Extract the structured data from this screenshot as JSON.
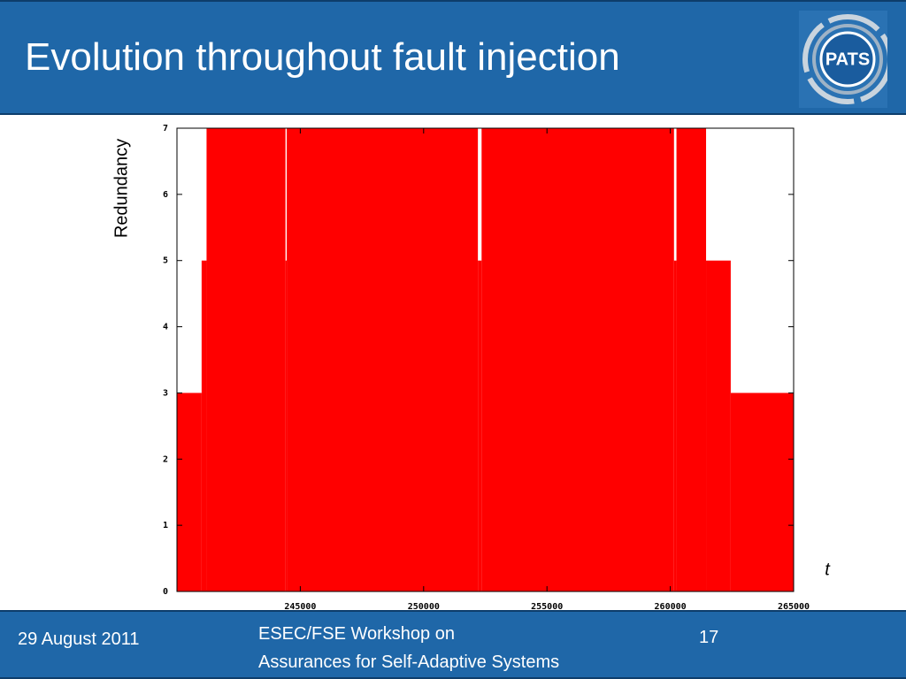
{
  "header": {
    "title": "Evolution throughout fault injection",
    "logo": "PATS"
  },
  "chart_data": {
    "type": "step-area",
    "y_label": "Redundancy",
    "x_label": "t",
    "color": "#ff0000",
    "x": [
      240000,
      241000,
      241200,
      244400,
      244450,
      252200,
      252350,
      260150,
      260250,
      261450,
      262450
    ],
    "values": [
      3,
      5,
      7,
      5,
      7,
      5,
      7,
      5,
      7,
      5,
      3
    ],
    "xlim": [
      240000,
      265000
    ],
    "ylim": [
      0,
      7
    ],
    "xticks": [
      245000,
      250000,
      255000,
      260000,
      265000
    ],
    "yticks": [
      0,
      1,
      2,
      3,
      4,
      5,
      6,
      7
    ]
  },
  "footer": {
    "date": "29 August 2011",
    "event_line1": "ESEC/FSE Workshop on",
    "event_line2": "Assurances for Self-Adaptive Systems",
    "page": "17"
  }
}
